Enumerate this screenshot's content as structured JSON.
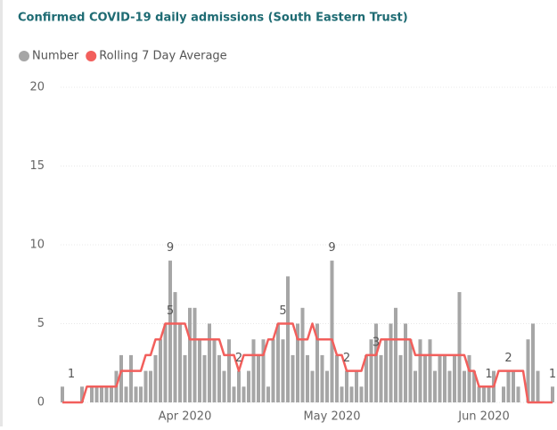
{
  "chart_data": {
    "type": "bar-line",
    "title": "Confirmed COVID-19 daily admissions (South Eastern Trust)",
    "categories": [
      null,
      null,
      null,
      null,
      null,
      null,
      null,
      null,
      null,
      null,
      null,
      null,
      null,
      null,
      null,
      null,
      null,
      null,
      null,
      null,
      null,
      null,
      null,
      null,
      null,
      "Apr 2020",
      null,
      null,
      null,
      null,
      null,
      null,
      null,
      null,
      null,
      null,
      null,
      null,
      null,
      null,
      null,
      null,
      null,
      null,
      null,
      null,
      null,
      null,
      null,
      null,
      null,
      null,
      null,
      null,
      null,
      "May 2020",
      null,
      null,
      null,
      null,
      null,
      null,
      null,
      null,
      null,
      null,
      null,
      null,
      null,
      null,
      null,
      null,
      null,
      null,
      null,
      null,
      null,
      null,
      null,
      null,
      null,
      null,
      null,
      null,
      null,
      null,
      "Jun 2020",
      null,
      null,
      null,
      null,
      null,
      null,
      null,
      null,
      null,
      null,
      null,
      null,
      null,
      null
    ],
    "series": [
      {
        "name": "Number",
        "color": "#a6a6a6",
        "values": [
          1,
          0,
          0,
          0,
          1,
          0,
          1,
          1,
          1,
          1,
          1,
          2,
          3,
          1,
          3,
          1,
          1,
          2,
          2,
          3,
          4,
          5,
          9,
          7,
          5,
          3,
          6,
          6,
          4,
          3,
          5,
          4,
          3,
          2,
          4,
          1,
          2,
          1,
          2,
          4,
          3,
          4,
          1,
          4,
          5,
          4,
          8,
          3,
          5,
          6,
          3,
          2,
          5,
          3,
          2,
          9,
          3,
          1,
          2,
          1,
          2,
          1,
          3,
          4,
          5,
          3,
          4,
          5,
          6,
          3,
          5,
          4,
          2,
          4,
          3,
          4,
          2,
          3,
          3,
          2,
          3,
          7,
          2,
          3,
          2,
          1,
          1,
          1,
          2,
          0,
          1,
          2,
          2,
          1,
          0,
          4,
          5,
          2,
          0,
          0,
          1
        ]
      },
      {
        "name": "Rolling 7 Day Average",
        "color": "#f25f5c",
        "values": [
          0,
          0,
          0,
          0,
          0,
          1,
          1,
          1,
          1,
          1,
          1,
          1,
          2,
          2,
          2,
          2,
          2,
          3,
          3,
          4,
          4,
          5,
          5,
          5,
          5,
          5,
          4,
          4,
          4,
          4,
          4,
          4,
          4,
          3,
          3,
          3,
          2,
          3,
          3,
          3,
          3,
          3,
          4,
          4,
          5,
          5,
          5,
          5,
          4,
          4,
          4,
          5,
          4,
          4,
          4,
          4,
          3,
          3,
          2,
          2,
          2,
          2,
          3,
          3,
          3,
          4,
          4,
          4,
          4,
          4,
          4,
          4,
          3,
          3,
          3,
          3,
          3,
          3,
          3,
          3,
          3,
          3,
          3,
          2,
          2,
          1,
          1,
          1,
          1,
          2,
          2,
          2,
          2,
          2,
          2,
          0,
          0,
          0,
          0,
          0,
          0
        ]
      }
    ],
    "ylim": [
      0,
      20
    ],
    "yticks": [
      0,
      5,
      10,
      15,
      20
    ],
    "grid": true
  }
}
